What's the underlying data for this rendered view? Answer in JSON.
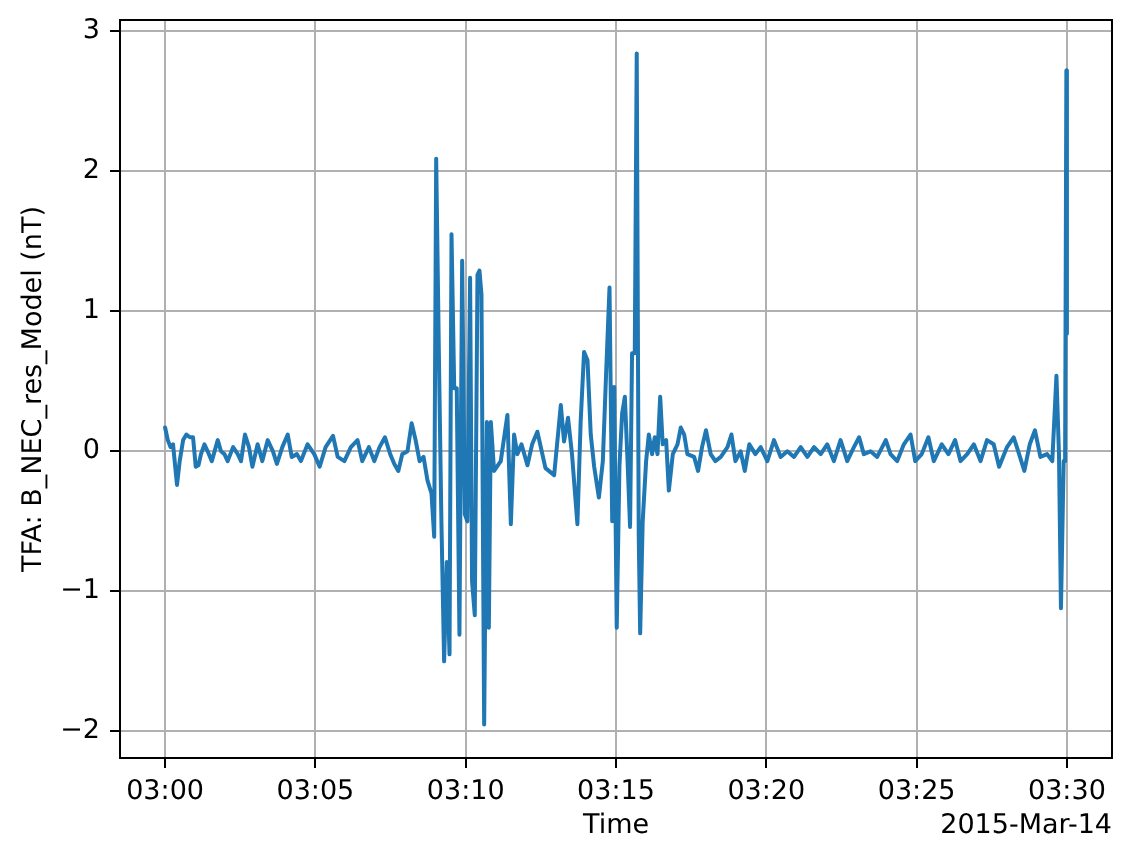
{
  "chart_data": {
    "type": "line",
    "xlabel": "Time",
    "ylabel": "TFA: B_NEC_res_Model (nT)",
    "annotations": [
      "2015-Mar-14"
    ],
    "x": [
      3.0,
      3.0015,
      3.003,
      3.0044,
      3.0066,
      3.0081,
      3.01,
      3.0118,
      3.0137,
      3.0155,
      3.017,
      3.0185,
      3.0199,
      3.0218,
      3.0236,
      3.0259,
      3.0292,
      3.031,
      3.0329,
      3.0347,
      3.0377,
      3.0403,
      3.0421,
      3.0443,
      3.0465,
      3.0484,
      3.0513,
      3.0539,
      3.0569,
      3.0598,
      3.062,
      3.065,
      3.068,
      3.0702,
      3.0731,
      3.0753,
      3.079,
      3.0827,
      3.0857,
      3.089,
      3.0931,
      3.0957,
      3.0994,
      3.103,
      3.1067,
      3.1093,
      3.113,
      3.116,
      3.1189,
      3.1219,
      3.1248,
      3.1271,
      3.1293,
      3.1315,
      3.1344,
      3.1367,
      3.1389,
      3.1411,
      3.1433,
      3.1455,
      3.1477,
      3.1492,
      3.1503,
      3.1518,
      3.1532,
      3.1547,
      3.1562,
      3.1577,
      3.1588,
      3.1603,
      3.1617,
      3.1632,
      3.1647,
      3.1662,
      3.1676,
      3.1691,
      3.1702,
      3.1717,
      3.1732,
      3.1743,
      3.1754,
      3.1769,
      3.1784,
      3.1795,
      3.1806,
      3.1824,
      3.1861,
      3.1898,
      3.1917,
      3.1935,
      3.1953,
      3.1976,
      3.2009,
      3.2035,
      3.2064,
      3.2109,
      3.2157,
      3.2194,
      3.2212,
      3.2234,
      3.2256,
      3.2286,
      3.2304,
      3.2323,
      3.2342,
      3.236,
      3.2379,
      3.2405,
      3.2427,
      3.2445,
      3.2464,
      3.2479,
      3.249,
      3.2504,
      3.2519,
      3.2534,
      3.2549,
      3.2564,
      3.2578,
      3.2589,
      3.2604,
      3.2615,
      3.2626,
      3.2634,
      3.2648,
      3.2667,
      3.2682,
      3.27,
      3.2715,
      3.273,
      3.2745,
      3.2759,
      3.2778,
      3.2793,
      3.2815,
      3.2841,
      3.2859,
      3.2878,
      3.2896,
      3.2933,
      3.2955,
      3.2977,
      3.2999,
      3.3025,
      3.3051,
      3.3081,
      3.3118,
      3.314,
      3.3162,
      3.3191,
      3.3214,
      3.3239,
      3.3273,
      3.3302,
      3.3339,
      3.3376,
      3.3413,
      3.345,
      3.3487,
      3.3524,
      3.3561,
      3.3598,
      3.3635,
      3.3671,
      3.3708,
      3.3745,
      3.3782,
      3.3819,
      3.3848,
      3.3874,
      3.3911,
      3.3948,
      3.3996,
      3.4022,
      3.4059,
      3.4096,
      3.4133,
      3.4159,
      3.4195,
      3.4232,
      3.4262,
      3.4306,
      3.4343,
      3.438,
      3.441,
      3.4447,
      3.4484,
      3.4521,
      3.4557,
      3.4594,
      3.4624,
      3.4668,
      3.4705,
      3.4735,
      3.4764,
      3.4794,
      3.4823,
      3.4853,
      3.489,
      3.4919,
      3.4942,
      3.4956,
      3.4967,
      3.4982,
      3.499,
      3.4997,
      3.5
    ],
    "values": [
      0.17,
      0.08,
      0.03,
      0.05,
      -0.24,
      -0.07,
      0.08,
      0.12,
      0.1,
      0.1,
      -0.11,
      -0.1,
      -0.02,
      0.05,
      0.0,
      -0.07,
      0.08,
      0.0,
      -0.02,
      -0.07,
      0.03,
      -0.02,
      -0.07,
      0.12,
      0.03,
      -0.11,
      0.05,
      -0.07,
      0.08,
      0.0,
      -0.09,
      0.03,
      0.12,
      -0.04,
      -0.02,
      -0.07,
      0.05,
      -0.02,
      -0.11,
      0.03,
      0.11,
      -0.04,
      -0.07,
      0.03,
      0.08,
      -0.07,
      0.03,
      -0.07,
      0.03,
      0.1,
      -0.02,
      -0.09,
      -0.14,
      -0.02,
      0.0,
      0.2,
      0.08,
      -0.07,
      -0.04,
      -0.21,
      -0.3,
      -0.61,
      2.09,
      0.69,
      -0.5,
      -1.5,
      -0.79,
      -1.45,
      1.55,
      0.45,
      0.45,
      -1.31,
      1.36,
      -0.45,
      -0.5,
      1.24,
      -0.93,
      -1.17,
      1.26,
      1.29,
      1.12,
      -1.95,
      0.21,
      -1.26,
      0.21,
      -0.14,
      -0.07,
      0.26,
      -0.52,
      0.12,
      -0.02,
      0.05,
      -0.1,
      0.05,
      0.14,
      -0.12,
      -0.17,
      0.33,
      0.07,
      0.24,
      -0.02,
      -0.52,
      0.21,
      0.71,
      0.65,
      0.12,
      -0.11,
      -0.33,
      -0.07,
      0.55,
      1.17,
      -0.5,
      0.46,
      -1.26,
      -0.11,
      0.27,
      0.39,
      -0.07,
      -0.54,
      0.7,
      0.7,
      2.84,
      -0.6,
      -1.3,
      -0.5,
      -0.07,
      0.12,
      -0.02,
      0.1,
      -0.02,
      0.39,
      0.05,
      0.08,
      -0.28,
      -0.02,
      0.05,
      0.17,
      0.12,
      -0.02,
      -0.04,
      -0.14,
      0.03,
      0.15,
      -0.02,
      -0.07,
      -0.04,
      0.03,
      0.12,
      -0.07,
      0.0,
      -0.14,
      0.05,
      -0.02,
      0.03,
      -0.07,
      0.08,
      -0.04,
      0.0,
      -0.04,
      0.03,
      -0.04,
      0.03,
      -0.02,
      0.05,
      -0.07,
      0.08,
      -0.07,
      0.03,
      0.1,
      -0.02,
      0.0,
      -0.04,
      0.08,
      -0.02,
      -0.07,
      0.05,
      0.12,
      -0.07,
      -0.02,
      0.1,
      -0.07,
      0.05,
      -0.02,
      0.08,
      -0.07,
      -0.02,
      0.05,
      -0.07,
      0.08,
      0.05,
      -0.11,
      0.03,
      0.1,
      -0.02,
      -0.14,
      0.05,
      0.15,
      -0.04,
      -0.02,
      -0.07,
      0.54,
      -0.02,
      -1.12,
      -0.07,
      -0.07,
      2.72,
      0.84
    ],
    "color": "#1f77b4",
    "xlim": [
      2.975,
      3.525
    ],
    "xticks": [
      {
        "value": 3.0,
        "label": "03:00"
      },
      {
        "value": 3.0833333,
        "label": "03:05"
      },
      {
        "value": 3.1666667,
        "label": "03:10"
      },
      {
        "value": 3.25,
        "label": "03:15"
      },
      {
        "value": 3.3333333,
        "label": "03:20"
      },
      {
        "value": 3.4166667,
        "label": "03:25"
      },
      {
        "value": 3.5,
        "label": "03:30"
      }
    ],
    "ylim": [
      -2.19,
      3.08
    ],
    "yticks": [
      {
        "value": -2,
        "label": "−2"
      },
      {
        "value": -1,
        "label": "−1"
      },
      0,
      1,
      2,
      3
    ],
    "grid": true
  }
}
